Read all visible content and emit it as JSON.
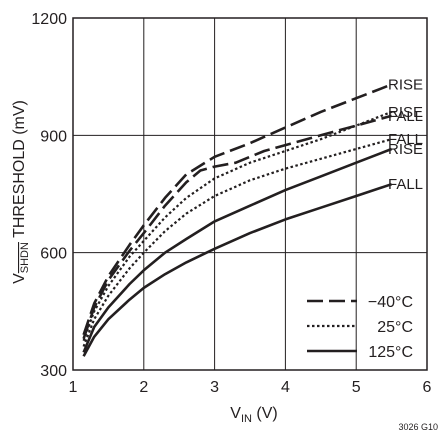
{
  "chart_data": {
    "type": "line",
    "xlabel": {
      "main": "V",
      "sub": "IN",
      "rest": " (V)"
    },
    "ylabel": {
      "main": "V",
      "sub": "SHDN",
      "rest": " THRESHOLD (mV)"
    },
    "xlim": [
      1,
      6
    ],
    "ylim": [
      300,
      1200
    ],
    "xticks": [
      "1",
      "2",
      "3",
      "4",
      "5",
      "6"
    ],
    "yticks": [
      "300",
      "600",
      "900",
      "1200"
    ],
    "grid": true,
    "legend_position": "bottom-right",
    "figure_id": "3026 G10",
    "series": [
      {
        "name": "−40°C",
        "style": "dashed",
        "label": "RISE",
        "x": [
          1.15,
          1.3,
          1.5,
          1.8,
          2.0,
          2.3,
          2.6,
          3.0,
          3.5,
          4.0,
          4.5,
          5.0,
          5.5
        ],
        "y": [
          390,
          470,
          540,
          620,
          670,
          740,
          800,
          845,
          880,
          920,
          960,
          995,
          1030
        ]
      },
      {
        "name": "−40°C",
        "style": "dashed",
        "label": "FALL",
        "x": [
          1.15,
          1.3,
          1.5,
          1.8,
          2.0,
          2.3,
          2.6,
          2.8,
          3.0,
          3.3,
          3.7,
          4.0,
          4.5,
          5.0,
          5.5
        ],
        "y": [
          380,
          460,
          530,
          605,
          650,
          720,
          780,
          810,
          820,
          830,
          860,
          875,
          900,
          925,
          950
        ]
      },
      {
        "name": "25°C",
        "style": "dotted",
        "label": "RISE",
        "x": [
          1.15,
          1.3,
          1.5,
          1.8,
          2.0,
          2.3,
          2.6,
          3.0,
          3.5,
          4.0,
          4.5,
          5.0,
          5.5
        ],
        "y": [
          375,
          450,
          515,
          590,
          630,
          690,
          740,
          790,
          830,
          860,
          890,
          925,
          960
        ]
      },
      {
        "name": "25°C",
        "style": "dotted",
        "label": "FALL",
        "x": [
          1.15,
          1.3,
          1.5,
          1.8,
          2.0,
          2.3,
          2.6,
          3.0,
          3.5,
          4.0,
          4.5,
          5.0,
          5.5
        ],
        "y": [
          360,
          430,
          490,
          560,
          600,
          655,
          700,
          745,
          785,
          815,
          840,
          865,
          890
        ]
      },
      {
        "name": "125°C",
        "style": "solid",
        "label": "RISE",
        "x": [
          1.15,
          1.3,
          1.5,
          1.8,
          2.0,
          2.3,
          2.6,
          3.0,
          3.5,
          4.0,
          4.5,
          5.0,
          5.5
        ],
        "y": [
          345,
          410,
          460,
          520,
          555,
          600,
          635,
          680,
          720,
          760,
          795,
          830,
          865
        ]
      },
      {
        "name": "125°C",
        "style": "solid",
        "label": "FALL",
        "x": [
          1.15,
          1.3,
          1.5,
          1.8,
          2.0,
          2.3,
          2.6,
          3.0,
          3.5,
          4.0,
          4.5,
          5.0,
          5.5
        ],
        "y": [
          335,
          385,
          430,
          480,
          510,
          545,
          575,
          610,
          650,
          685,
          715,
          745,
          775
        ]
      }
    ],
    "legend": [
      {
        "style": "dashed",
        "label": "−40°C"
      },
      {
        "style": "dotted",
        "label": "25°C"
      },
      {
        "style": "solid",
        "label": "125°C"
      }
    ]
  }
}
